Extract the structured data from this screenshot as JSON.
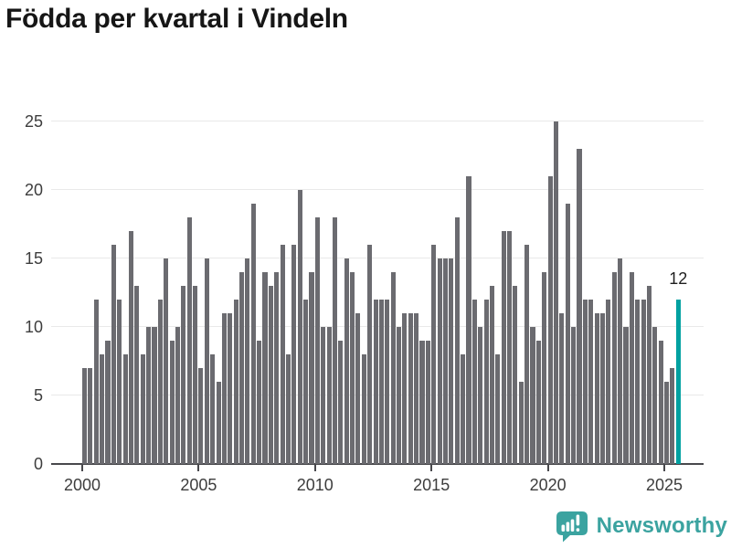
{
  "title": "Födda per kvartal i Vindeln",
  "brand": {
    "name": "Newsworthy",
    "color": "#3ba3a0"
  },
  "chart_data": {
    "type": "bar",
    "title": "Födda per kvartal i Vindeln",
    "ylabel": "",
    "xlabel": "",
    "period": "quarterly",
    "x_start": "2000-Q1",
    "x_end": "2025-Q3",
    "ylim": [
      0,
      25
    ],
    "yticks": [
      0,
      5,
      10,
      15,
      20,
      25
    ],
    "xticks": [
      2000,
      2005,
      2010,
      2015,
      2020,
      2025
    ],
    "grid": "horizontal",
    "legend": "none",
    "bar_color": "#6b6b70",
    "highlight_index": 102,
    "highlight_color": "#00a1a1",
    "highlight_label": "12",
    "values": [
      7,
      7,
      12,
      8,
      9,
      16,
      12,
      8,
      17,
      13,
      8,
      10,
      10,
      12,
      15,
      9,
      10,
      13,
      18,
      13,
      7,
      15,
      8,
      6,
      11,
      11,
      12,
      14,
      15,
      19,
      9,
      14,
      13,
      14,
      16,
      8,
      16,
      20,
      12,
      14,
      18,
      10,
      10,
      18,
      9,
      15,
      14,
      11,
      8,
      16,
      12,
      12,
      12,
      14,
      10,
      11,
      11,
      11,
      9,
      9,
      16,
      15,
      15,
      15,
      18,
      8,
      21,
      12,
      10,
      12,
      13,
      8,
      17,
      17,
      13,
      6,
      16,
      10,
      9,
      14,
      21,
      25,
      11,
      19,
      10,
      23,
      12,
      12,
      11,
      11,
      12,
      14,
      15,
      10,
      14,
      12,
      12,
      13,
      10,
      9,
      6,
      7,
      12
    ]
  }
}
